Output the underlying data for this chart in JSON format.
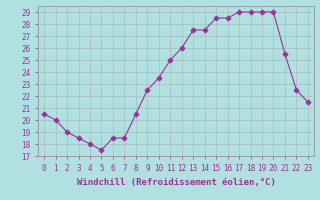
{
  "x": [
    0,
    1,
    2,
    3,
    4,
    5,
    6,
    7,
    8,
    9,
    10,
    11,
    12,
    13,
    14,
    15,
    16,
    17,
    18,
    19,
    20,
    21,
    22,
    23
  ],
  "y": [
    20.5,
    20.0,
    19.0,
    18.5,
    18.0,
    17.5,
    18.5,
    18.5,
    20.5,
    22.5,
    23.5,
    25.0,
    26.0,
    27.5,
    27.5,
    28.5,
    28.5,
    29.0,
    29.0,
    29.0,
    29.0,
    25.5,
    22.5,
    21.5
  ],
  "line_color": "#993399",
  "marker": "D",
  "bg_color": "#b0e0e0",
  "grid_color": "#aabbbb",
  "border_color": "#888888",
  "xlabel": "Windchill (Refroidissement éolien,°C)",
  "xlabel_color": "#993399",
  "tick_color": "#993399",
  "ylim": [
    17,
    29.5
  ],
  "yticks": [
    17,
    18,
    19,
    20,
    21,
    22,
    23,
    24,
    25,
    26,
    27,
    28,
    29
  ],
  "xticks": [
    0,
    1,
    2,
    3,
    4,
    5,
    6,
    7,
    8,
    9,
    10,
    11,
    12,
    13,
    14,
    15,
    16,
    17,
    18,
    19,
    20,
    21,
    22,
    23
  ],
  "xlabel_fontsize": 6.5,
  "tick_fontsize": 5.5,
  "marker_size": 2.5,
  "line_width": 0.8,
  "marker_edge_width": 0.8
}
